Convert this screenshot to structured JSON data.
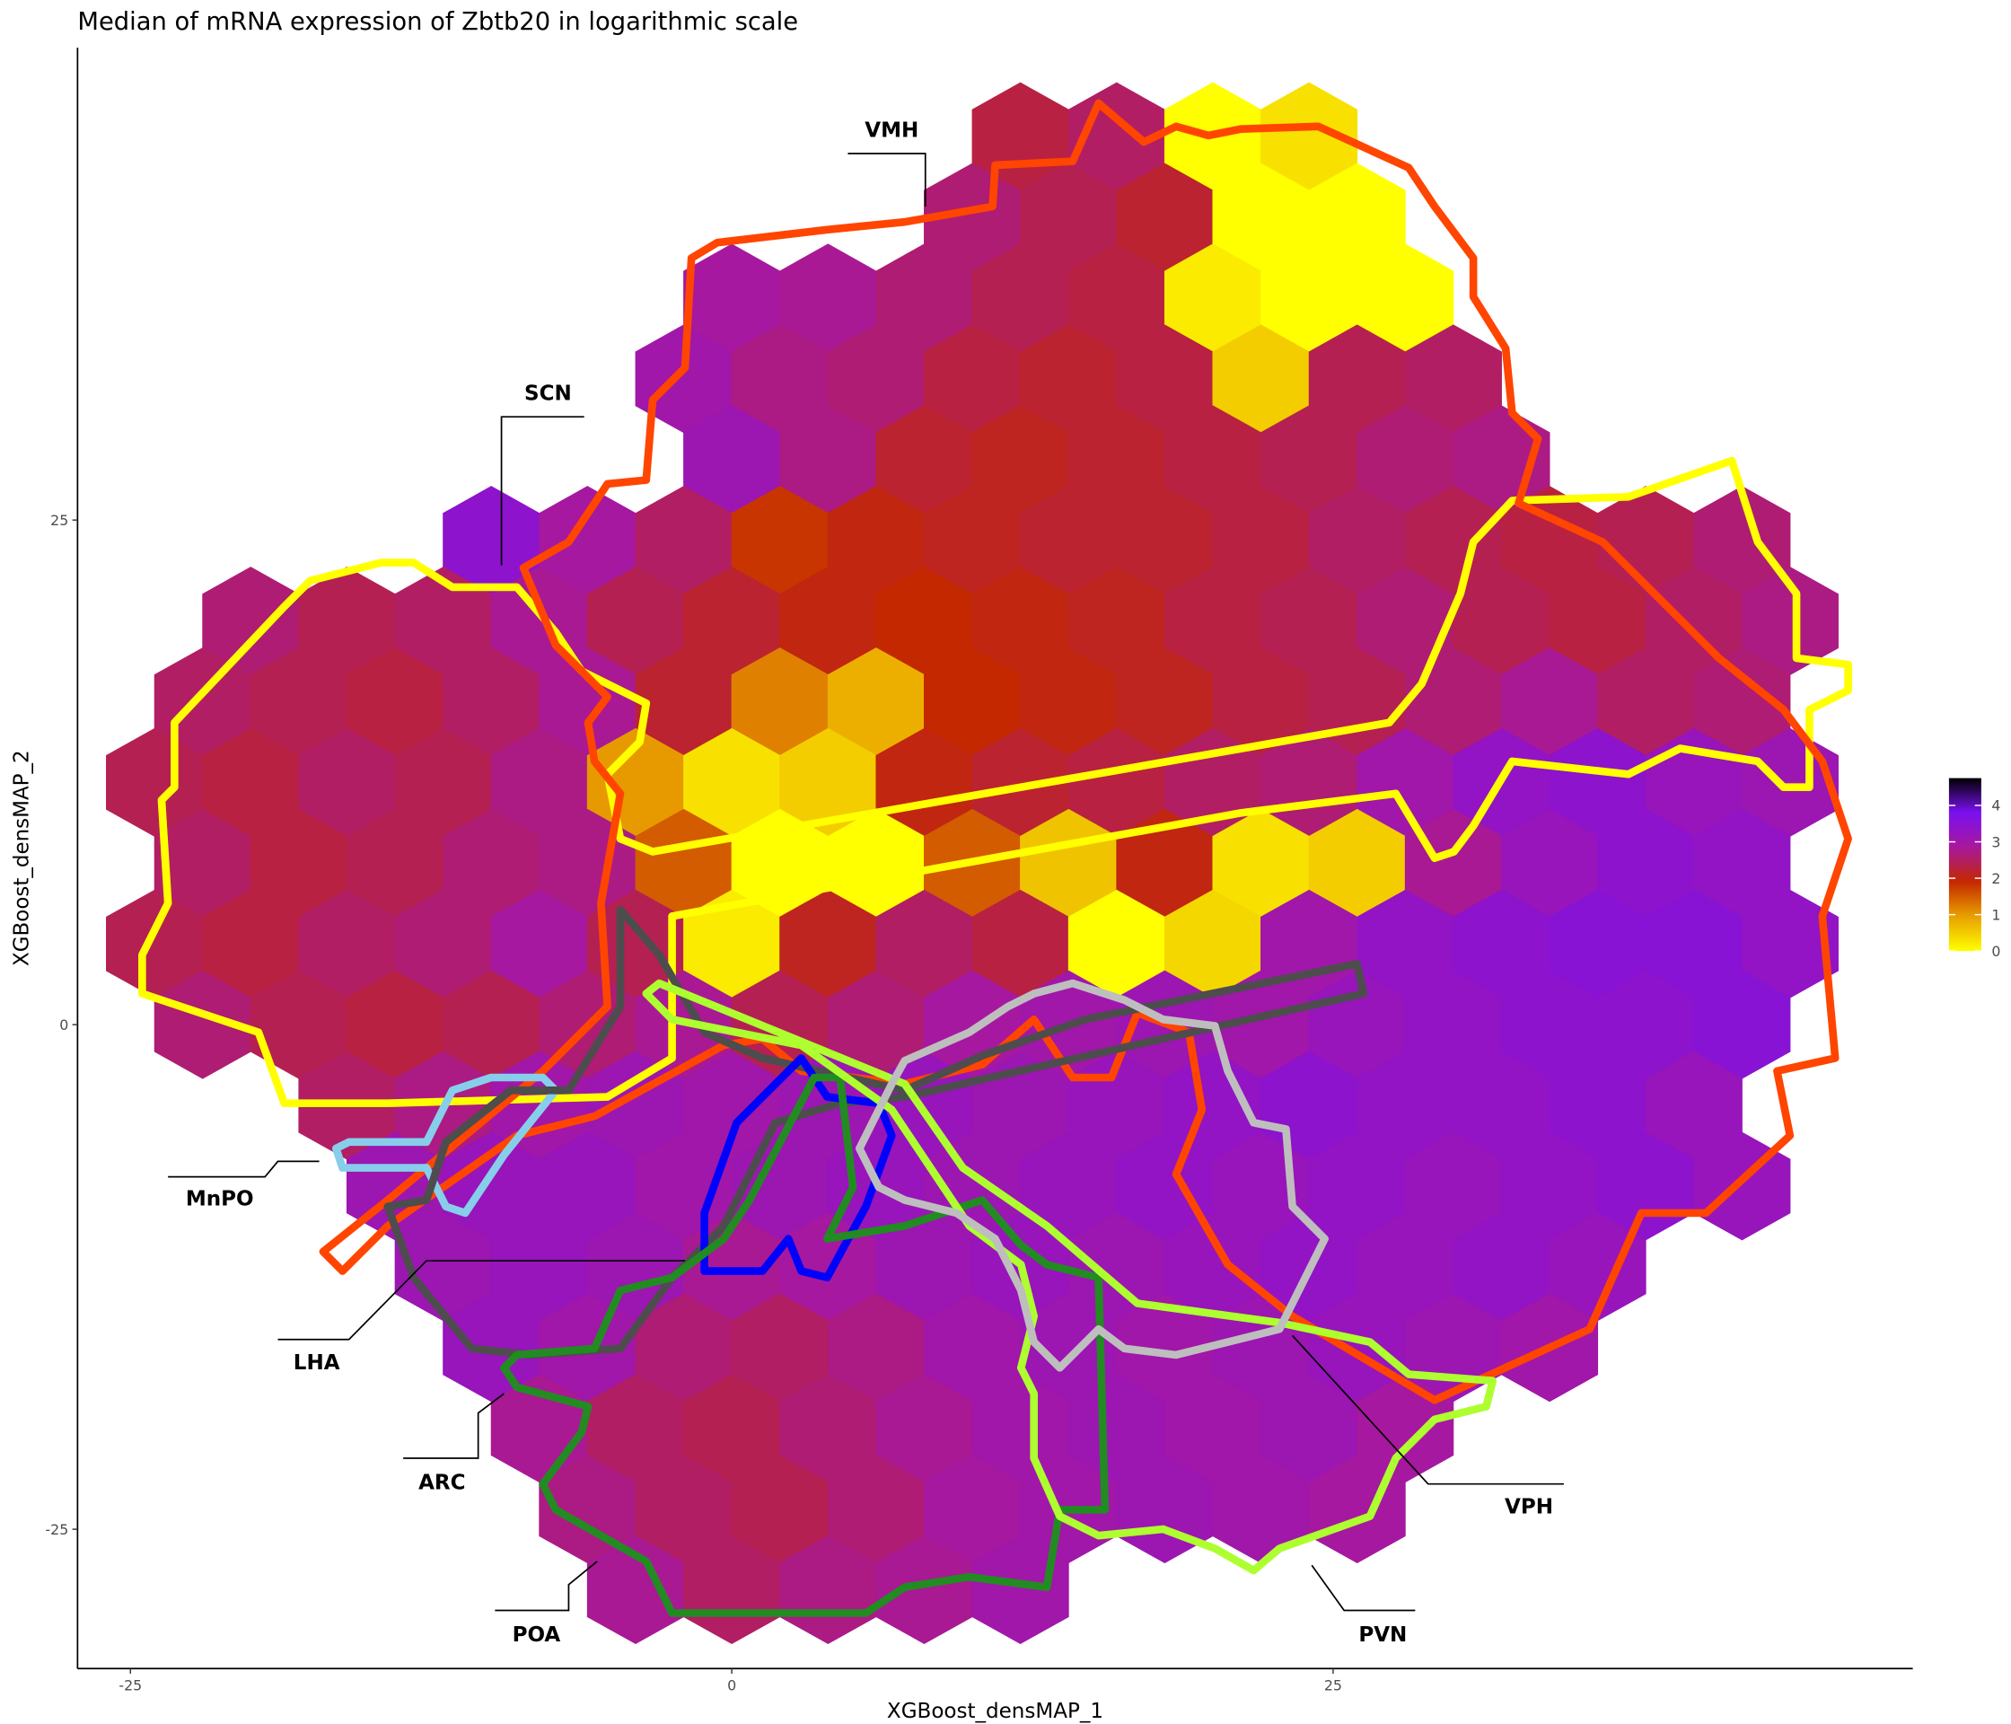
{
  "chart_data": {
    "type": "hexbin",
    "title": "Median of mRNA expression of Zbtb20 in logarithmic scale",
    "xlabel": "XGBoost_densMAP_1",
    "ylabel": "XGBoost_densMAP_2",
    "xlim": [
      -27.2,
      49.1
    ],
    "ylim": [
      -31.9,
      48.4
    ],
    "xticks": [
      -25,
      0,
      25
    ],
    "yticks": [
      -25,
      0,
      25
    ],
    "clim": [
      0,
      4.75
    ],
    "cticks": [
      0,
      1,
      2,
      3,
      4
    ],
    "colorscale": [
      "#ffff00",
      "#e8a000",
      "#c42800",
      "#a8189c",
      "#7a10f0",
      "#000000"
    ],
    "annotations": [
      "VMH",
      "SCN",
      "MnPO",
      "LHA",
      "ARC",
      "POA",
      "PVN",
      "VPH"
    ],
    "rows": [
      {
        "y": 44,
        "x": [
          12,
          16,
          20,
          24
        ],
        "values": [
          2.3,
          2.5,
          0,
          0.3
        ]
      },
      {
        "y": 40,
        "x": [
          10,
          14,
          18,
          22,
          26
        ],
        "values": [
          2.6,
          2.4,
          2.2,
          0,
          0
        ]
      },
      {
        "y": 36,
        "x": [
          0,
          4,
          8,
          12,
          16,
          20,
          24,
          28
        ],
        "values": [
          2.9,
          2.8,
          2.6,
          2.4,
          2.3,
          0.2,
          0,
          0
        ]
      },
      {
        "y": 32,
        "x": [
          -2,
          2,
          6,
          10,
          14,
          18,
          22,
          26,
          30
        ],
        "values": [
          3.0,
          2.7,
          2.6,
          2.3,
          2.2,
          2.3,
          0.5,
          2.4,
          2.5
        ]
      },
      {
        "y": 28,
        "x": [
          0,
          4,
          8,
          12,
          16,
          20,
          24,
          28,
          32
        ],
        "values": [
          3.1,
          2.7,
          2.2,
          2.1,
          2.2,
          2.3,
          2.4,
          2.6,
          2.7
        ]
      },
      {
        "y": 24,
        "x": [
          -10,
          -6,
          -2,
          2,
          6,
          10,
          14,
          18,
          22,
          26,
          30,
          34,
          38,
          42
        ],
        "values": [
          3.4,
          2.9,
          2.5,
          1.8,
          2.0,
          2.1,
          2.2,
          2.2,
          2.3,
          2.5,
          2.4,
          2.3,
          2.4,
          2.6
        ]
      },
      {
        "y": 20,
        "x": [
          -20,
          -16,
          -12,
          -8,
          -4,
          0,
          4,
          8,
          12,
          16,
          20,
          24,
          28,
          32,
          36,
          40,
          44
        ],
        "values": [
          2.6,
          2.4,
          2.5,
          2.8,
          2.4,
          2.2,
          2.0,
          1.9,
          2.0,
          2.1,
          2.3,
          2.4,
          2.6,
          2.4,
          2.3,
          2.5,
          2.7
        ]
      },
      {
        "y": 16,
        "x": [
          -22,
          -18,
          -14,
          -10,
          -6,
          -2,
          2,
          6,
          10,
          14,
          18,
          22,
          26,
          30,
          34,
          38,
          42
        ],
        "values": [
          2.5,
          2.4,
          2.3,
          2.5,
          2.8,
          2.2,
          1.2,
          0.8,
          1.9,
          2.0,
          2.1,
          2.3,
          2.4,
          2.6,
          2.8,
          2.5,
          2.6
        ]
      },
      {
        "y": 12,
        "x": [
          -24,
          -20,
          -16,
          -12,
          -8,
          -4,
          0,
          4,
          8,
          12,
          16,
          20,
          24,
          28,
          32,
          36,
          40,
          44
        ],
        "values": [
          2.4,
          2.3,
          2.5,
          2.4,
          2.7,
          1.0,
          0.3,
          0.5,
          2.0,
          2.2,
          2.3,
          2.5,
          2.6,
          3.0,
          3.3,
          3.4,
          3.2,
          3.1
        ]
      },
      {
        "y": 8,
        "x": [
          -22,
          -18,
          -14,
          -10,
          -6,
          -2,
          2,
          6,
          10,
          14,
          18,
          22,
          26,
          30,
          34,
          38,
          42
        ],
        "values": [
          2.5,
          2.3,
          2.4,
          2.6,
          2.7,
          1.5,
          0,
          0,
          1.5,
          0.6,
          2.0,
          0.3,
          0.5,
          2.8,
          3.2,
          3.4,
          3.3
        ]
      },
      {
        "y": 4,
        "x": [
          -24,
          -20,
          -16,
          -12,
          -8,
          -4,
          0,
          4,
          8,
          12,
          16,
          20,
          24,
          28,
          32,
          36,
          40,
          44
        ],
        "values": [
          2.4,
          2.3,
          2.5,
          2.6,
          2.9,
          2.4,
          0.2,
          2.1,
          2.5,
          2.3,
          0,
          0.4,
          3.0,
          3.3,
          3.4,
          3.5,
          3.5,
          3.3
        ]
      },
      {
        "y": 0,
        "x": [
          -22,
          -18,
          -14,
          -10,
          -6,
          -2,
          2,
          6,
          10,
          14,
          18,
          22,
          26,
          30,
          34,
          38,
          42
        ],
        "values": [
          2.6,
          2.4,
          2.3,
          2.4,
          2.6,
          2.8,
          2.4,
          2.6,
          2.9,
          3.0,
          3.1,
          3.0,
          3.2,
          3.3,
          3.4,
          3.4,
          3.5
        ]
      },
      {
        "y": -4,
        "x": [
          -16,
          -12,
          -8,
          -4,
          0,
          4,
          8,
          12,
          16,
          20,
          24,
          28,
          32,
          36,
          40
        ],
        "values": [
          2.5,
          2.7,
          3.0,
          3.1,
          3.0,
          3.1,
          3.2,
          3.1,
          3.2,
          3.3,
          3.4,
          3.3,
          3.3,
          3.4,
          3.2
        ]
      },
      {
        "y": -8,
        "x": [
          -14,
          -10,
          -6,
          -2,
          2,
          6,
          10,
          14,
          18,
          22,
          26,
          30,
          34,
          38,
          42
        ],
        "values": [
          3.1,
          3.2,
          3.2,
          3.0,
          3.1,
          3.2,
          3.1,
          3.2,
          3.3,
          3.2,
          3.3,
          3.2,
          3.3,
          3.4,
          3.2
        ]
      },
      {
        "y": -12,
        "x": [
          -12,
          -8,
          -4,
          0,
          4,
          8,
          12,
          16,
          20,
          24,
          28,
          32,
          36
        ],
        "values": [
          3.1,
          3.2,
          3.1,
          2.8,
          2.9,
          3.1,
          3.2,
          3.1,
          3.2,
          3.3,
          3.2,
          3.3,
          3.2
        ]
      },
      {
        "y": -16,
        "x": [
          -10,
          -6,
          -2,
          2,
          6,
          10,
          14,
          18,
          22,
          26,
          30,
          34
        ],
        "values": [
          3.2,
          3.0,
          2.6,
          2.5,
          2.7,
          3.0,
          3.1,
          3.0,
          3.1,
          3.2,
          3.1,
          3.0
        ]
      },
      {
        "y": -20,
        "x": [
          -8,
          -4,
          0,
          4,
          8,
          12,
          16,
          20,
          24,
          28
        ],
        "values": [
          2.8,
          2.5,
          2.4,
          2.6,
          2.8,
          3.0,
          3.1,
          3.0,
          3.1,
          2.9
        ]
      },
      {
        "y": -24,
        "x": [
          -6,
          -2,
          2,
          6,
          10,
          14,
          18,
          22,
          26
        ],
        "values": [
          2.7,
          2.5,
          2.4,
          2.6,
          2.9,
          3.0,
          3.1,
          3.0,
          2.9
        ]
      },
      {
        "y": -28,
        "x": [
          -4,
          0,
          4,
          8,
          12
        ],
        "values": [
          2.8,
          2.5,
          2.7,
          2.8,
          3.0
        ]
      }
    ]
  }
}
